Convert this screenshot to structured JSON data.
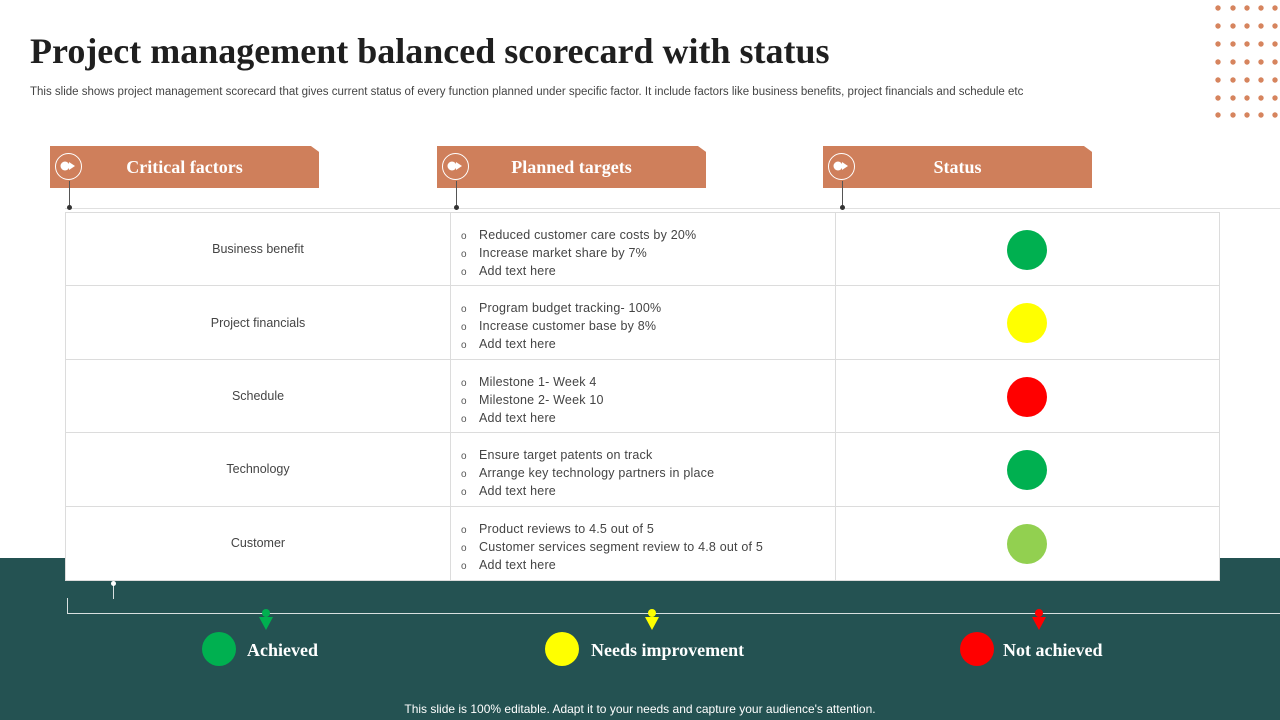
{
  "slide": {
    "title": "Project management balanced scorecard with status",
    "subtitle": "This slide shows project management scorecard that gives current status of every  function planned under specific factor. It include factors like business benefits, project financials and schedule etc"
  },
  "headers": {
    "critical_factors": "Critical factors",
    "planned_targets": "Planned targets",
    "status": "Status"
  },
  "colors": {
    "accent": "#cf7f5b",
    "band": "#245252",
    "achieved": "#00b050",
    "needs_improvement": "#ffff00",
    "not_achieved": "#ff0000",
    "light_green": "#92d050"
  },
  "bullet_symbol": "o",
  "rows": [
    {
      "factor": "Business benefit",
      "targets": [
        "Reduced  customer care costs by 20%",
        "Increase  market share  by 7%",
        "Add text here"
      ],
      "status_color": "#00b050"
    },
    {
      "factor": "Project financials",
      "targets": [
        "Program  budget tracking- 100%",
        "Increase  customer base by 8%",
        "Add text here"
      ],
      "status_color": "#ffff00"
    },
    {
      "factor": "Schedule",
      "targets": [
        "Milestone 1- Week 4",
        "Milestone 2- Week 10",
        "Add text here"
      ],
      "status_color": "#ff0000"
    },
    {
      "factor": "Technology",
      "targets": [
        "Ensure  target patents on track",
        "Arrange  key technology  partners in place",
        "Add text here"
      ],
      "status_color": "#00b050"
    },
    {
      "factor": "Customer",
      "targets": [
        "Product  reviews  to 4.5 out of 5",
        "Customer  services  segment review  to 4.8 out of 5",
        "Add text here"
      ],
      "status_color": "#92d050"
    }
  ],
  "legend": {
    "achieved": "Achieved",
    "needs_improvement": "Needs improvement",
    "not_achieved": "Not achieved"
  },
  "footer": "This slide is 100% editable. Adapt it to your needs and capture your audience's attention."
}
